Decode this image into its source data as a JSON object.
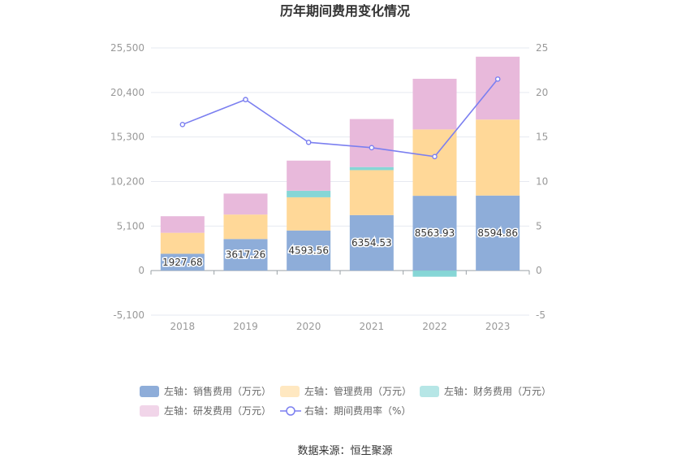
{
  "title": "历年期间费用变化情况",
  "source": "数据来源：恒生聚源",
  "chart_data": {
    "type": "bar",
    "stacked": true,
    "categories": [
      "2018",
      "2019",
      "2020",
      "2021",
      "2022",
      "2023"
    ],
    "series": [
      {
        "name": "左轴：销售费用（万元）",
        "axis": "left",
        "color": "#8eadd9",
        "values": [
          1927.68,
          3617.26,
          4593.56,
          6354.53,
          8563.93,
          8594.86
        ]
      },
      {
        "name": "左轴：管理费用（万元）",
        "axis": "left",
        "color": "#ffd898",
        "values": [
          2400,
          2800,
          3800,
          5150,
          7600,
          8700
        ]
      },
      {
        "name": "左轴：财务费用（万元）",
        "axis": "left",
        "color": "#86d6d6",
        "values": [
          0,
          0,
          750,
          350,
          -700,
          0
        ]
      },
      {
        "name": "左轴：研发费用（万元）",
        "axis": "left",
        "color": "#e8b9db",
        "values": [
          1900,
          2400,
          3450,
          5500,
          5800,
          7200
        ]
      },
      {
        "name": "右轴：期间费用率（%）",
        "axis": "right",
        "type": "line",
        "color": "#7b7ff0",
        "values": [
          16.4,
          19.2,
          14.4,
          13.8,
          12.8,
          21.5
        ]
      }
    ],
    "bar_labels": [
      "1927.68",
      "3617.26",
      "4593.56",
      "6354.53",
      "8563.93",
      "8594.86"
    ],
    "left_axis": {
      "min": -5100,
      "max": 25500,
      "ticks": [
        "-5,100",
        "0",
        "5,100",
        "10,200",
        "15,300",
        "20,400",
        "25,500"
      ]
    },
    "right_axis": {
      "min": -5,
      "max": 25,
      "ticks": [
        "-5",
        "0",
        "5",
        "10",
        "15",
        "20",
        "25"
      ]
    },
    "legend_position": "bottom",
    "grid": true
  }
}
